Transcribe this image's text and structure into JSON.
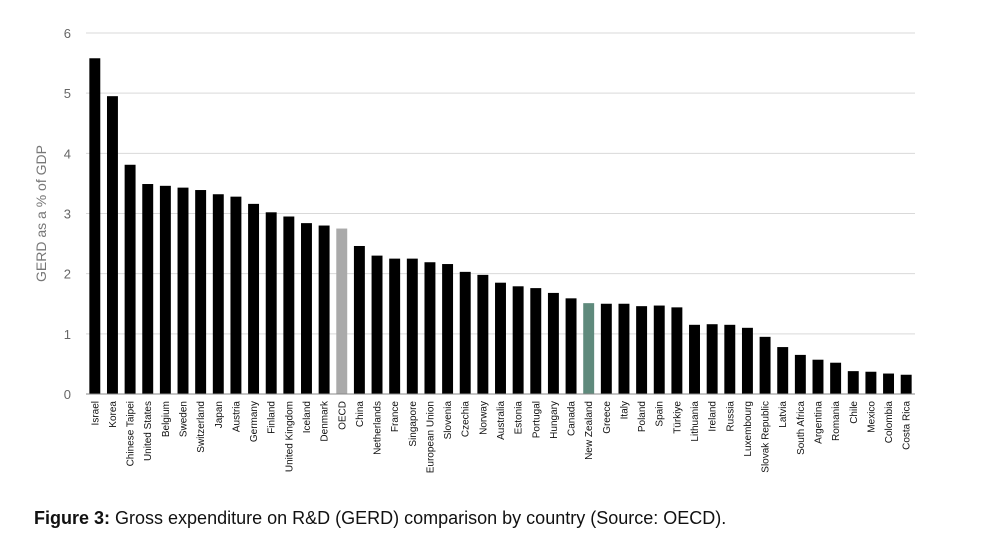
{
  "caption": {
    "label": "Figure 3:",
    "text": "Gross expenditure on R&D (GERD) comparison by country (Source: OECD)."
  },
  "colors": {
    "default_bar": "#000000",
    "oecd_bar": "#aaaaaa",
    "highlight_bar": "#5f8a7c",
    "grid": "#d9d9d9",
    "axis": "#888888"
  },
  "chart_data": {
    "type": "bar",
    "ylabel": "GERD as a % of GDP",
    "xlabel": "",
    "ylim": [
      0,
      6
    ],
    "yticks": [
      0,
      1,
      2,
      3,
      4,
      5,
      6
    ],
    "grid": true,
    "categories": [
      "Israel",
      "Korea",
      "Chinese Taipei",
      "United States",
      "Belgium",
      "Sweden",
      "Switzerland",
      "Japan",
      "Austria",
      "Germany",
      "Finland",
      "United Kingdom",
      "Iceland",
      "Denmark",
      "OECD",
      "China",
      "Netherlands",
      "France",
      "Singapore",
      "European Union",
      "Slovenia",
      "Czechia",
      "Norway",
      "Australia",
      "Estonia",
      "Portugal",
      "Hungary",
      "Canada",
      "New Zealand",
      "Greece",
      "Italy",
      "Poland",
      "Spain",
      "Türkiye",
      "Lithuania",
      "Ireland",
      "Russia",
      "Luxembourg",
      "Slovak Republic",
      "Latvia",
      "South Africa",
      "Argentina",
      "Romania",
      "Chile",
      "Mexico",
      "Colombia",
      "Costa Rica"
    ],
    "values": [
      5.58,
      4.95,
      3.81,
      3.49,
      3.46,
      3.43,
      3.39,
      3.32,
      3.28,
      3.16,
      3.02,
      2.95,
      2.84,
      2.8,
      2.75,
      2.46,
      2.3,
      2.25,
      2.25,
      2.19,
      2.16,
      2.03,
      1.98,
      1.85,
      1.79,
      1.76,
      1.68,
      1.59,
      1.51,
      1.5,
      1.5,
      1.46,
      1.47,
      1.44,
      1.15,
      1.16,
      1.15,
      1.1,
      0.95,
      0.78,
      0.65,
      0.57,
      0.52,
      0.38,
      0.37,
      0.34,
      0.32
    ],
    "highlights": {
      "OECD": "oecd_bar",
      "New Zealand": "highlight_bar"
    }
  }
}
